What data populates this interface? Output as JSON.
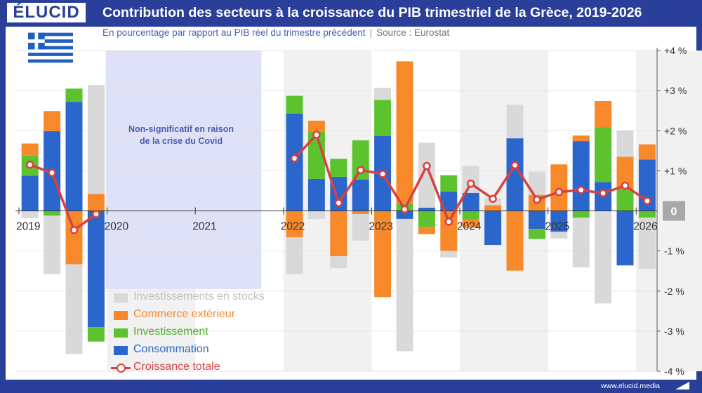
{
  "header": {
    "logo": "ÉLUCID",
    "title": "Contribution des secteurs à la croissance du PIB trimestriel de la Grèce, 2019-2026",
    "subtitle": "En pourcentage par rapport au PIB réel du trimestre précédent",
    "source": "Source : Eurostat"
  },
  "footer": {
    "url": "www.elucid.media"
  },
  "colors": {
    "stocks": "#d9d9d9",
    "trade": "#f7892a",
    "invest": "#5cc22d",
    "conso": "#2a66cc",
    "total": "#d94040",
    "shade": "#dfe1f7",
    "band": "#f1f1f1"
  },
  "annotation": {
    "line1": "Non-significatif en raison",
    "line2": "de la crise du Covid"
  },
  "chart_data": {
    "type": "bar",
    "stacked": true,
    "ylim": [
      -4,
      4
    ],
    "y_ticks": [
      "+4 %",
      "+3 %",
      "+2 %",
      "+1 %",
      "0",
      "-1 %",
      "-2 %",
      "-3 %",
      "-4 %"
    ],
    "x_tick_labels": [
      "2019",
      "2020",
      "2021",
      "2022",
      "2023",
      "2024",
      "2025",
      "2026"
    ],
    "legend": [
      {
        "key": "stocks",
        "label": "Investissements en stocks"
      },
      {
        "key": "trade",
        "label": "Commerce extérieur"
      },
      {
        "key": "invest",
        "label": "Investissement"
      },
      {
        "key": "conso",
        "label": "Consommation"
      },
      {
        "key": "total",
        "label": "Croissance totale"
      }
    ],
    "categories": [
      "2019T1",
      "2019T2",
      "2019T3",
      "2019T4",
      "2020T1",
      "2020T2",
      "2020T3",
      "2020T4",
      "2021T1",
      "2021T2",
      "2021T3",
      "2021T4",
      "2022T1",
      "2022T2",
      "2022T3",
      "2022T4",
      "2023T1",
      "2023T2",
      "2023T3",
      "2023T4",
      "2024T1",
      "2024T2",
      "2024T3",
      "2024T4",
      "2025T1",
      "2025T2",
      "2025T3",
      "2025T4"
    ],
    "series": [
      {
        "key": "conso",
        "name": "Consommation",
        "values": [
          0.88,
          1.99,
          2.72,
          -2.9,
          null,
          null,
          null,
          null,
          null,
          null,
          null,
          null,
          2.43,
          0.8,
          0.85,
          0.78,
          1.87,
          -0.2,
          0.08,
          0.48,
          0.45,
          -0.85,
          1.81,
          -0.45,
          -0.52,
          1.74,
          0.72,
          -1.36
        ]
      },
      {
        "key": "invest",
        "name": "Investissement",
        "values": [
          0.5,
          -0.12,
          0.33,
          -0.36,
          null,
          null,
          null,
          null,
          null,
          null,
          null,
          null,
          0.44,
          1.18,
          0.45,
          0.98,
          0.9,
          0.18,
          -0.4,
          0.41,
          -0.2,
          0.0,
          0.0,
          -0.25,
          0.0,
          -0.17,
          1.37,
          0.55
        ]
      },
      {
        "key": "trade",
        "name": "Commerce extérieur",
        "values": [
          0.3,
          0.5,
          -1.33,
          0.42,
          null,
          null,
          null,
          null,
          null,
          null,
          null,
          null,
          -0.66,
          0.27,
          -1.13,
          -0.08,
          -2.15,
          3.55,
          -0.18,
          -1.0,
          -0.22,
          0.14,
          -1.49,
          0.4,
          1.16,
          0.14,
          0.65,
          0.8
        ]
      },
      {
        "key": "stocks",
        "name": "Investissements en stocks",
        "values": [
          -0.18,
          -1.46,
          -2.24,
          2.72,
          null,
          null,
          null,
          null,
          null,
          null,
          null,
          null,
          -0.92,
          -0.2,
          -0.3,
          -0.66,
          0.3,
          -3.3,
          1.62,
          -0.16,
          0.67,
          0.18,
          0.84,
          0.58,
          -0.17,
          -1.24,
          -2.31,
          0.66
        ]
      }
    ],
    "total": {
      "name": "Croissance totale",
      "values": [
        1.15,
        0.95,
        -0.48,
        -0.08,
        null,
        null,
        null,
        null,
        null,
        null,
        null,
        null,
        1.31,
        1.9,
        0.2,
        1.02,
        0.92,
        0.04,
        1.12,
        -0.27,
        0.68,
        0.3,
        1.14,
        0.28,
        0.47,
        0.52,
        0.44,
        0.63
      ]
    },
    "extra_bars": [
      {
        "x": 28,
        "values": {
          "conso": 1.28,
          "invest": -0.17,
          "trade": 0.38,
          "stocks": -1.28
        },
        "total": 0.25,
        "totalPrev": 0.72
      }
    ]
  }
}
